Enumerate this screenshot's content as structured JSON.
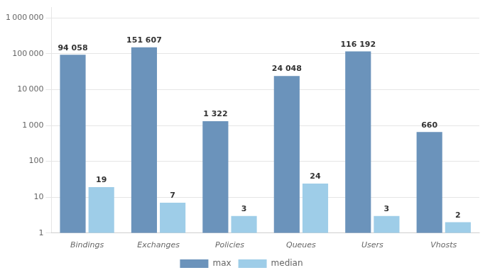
{
  "chart_data": {
    "type": "bar",
    "categories": [
      "Bindings",
      "Exchanges",
      "Policies",
      "Queues",
      "Users",
      "Vhosts"
    ],
    "series": [
      {
        "name": "max",
        "color": "#6b93bb",
        "values": [
          94058,
          151607,
          1322,
          24048,
          116192,
          660
        ],
        "value_labels": [
          "94 058",
          "151 607",
          "1 322",
          "24 048",
          "116 192",
          "660"
        ]
      },
      {
        "name": "median",
        "color": "#9ecde8",
        "values": [
          19,
          7,
          3,
          24,
          3,
          2
        ],
        "value_labels": [
          "19",
          "7",
          "3",
          "24",
          "3",
          "2"
        ]
      }
    ],
    "log": "y",
    "ylim": [
      1,
      2000000
    ],
    "yticks": [
      1,
      10,
      100,
      {
        "value": 1000,
        "label": "1 000"
      },
      {
        "value": 10000,
        "label": "10 000"
      },
      {
        "value": 100000,
        "label": "100 000"
      },
      {
        "value": 1000000,
        "label": "1 000 000"
      }
    ],
    "grid": true,
    "legend": "bottom",
    "data_labels": true
  }
}
